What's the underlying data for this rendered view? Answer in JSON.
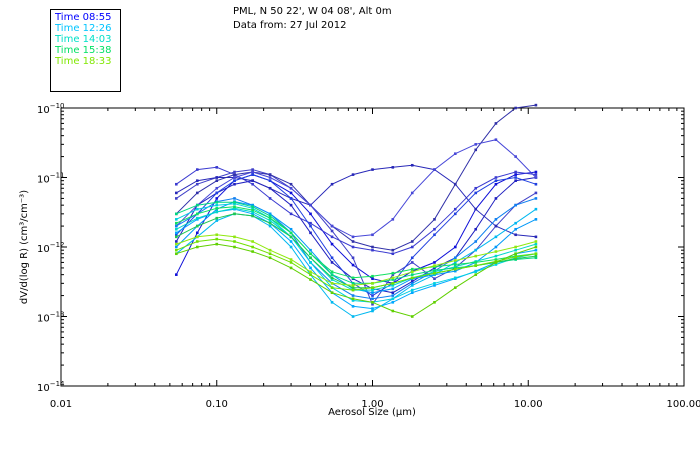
{
  "header": {
    "station": "PML, N 50 22', W 04 08', Alt 0m",
    "date_line": "Data from: 27 Jul 2012"
  },
  "legend": [
    {
      "label": "Time 08:55",
      "color": "#0000ff"
    },
    {
      "label": "Time 12:26",
      "color": "#00c4ff"
    },
    {
      "label": "Time 14:03",
      "color": "#00e0c8"
    },
    {
      "label": "Time 15:38",
      "color": "#00e064"
    },
    {
      "label": "Time 18:33",
      "color": "#80e800"
    }
  ],
  "chart_data": {
    "type": "line",
    "xscale": "log",
    "yscale": "log",
    "xlabel": "Aerosol Size (μm)",
    "ylabel": "dV/d(log R) (cm³/cm⁻³)",
    "xlim": [
      0.01,
      100
    ],
    "ylim": [
      1e-14,
      1e-10
    ],
    "x_ticks": [
      {
        "value": 0.01,
        "label": "0.01"
      },
      {
        "value": 0.1,
        "label": "0.10"
      },
      {
        "value": 1,
        "label": "1.00"
      },
      {
        "value": 10,
        "label": "10.00"
      },
      {
        "value": 100,
        "label": "100.00"
      }
    ],
    "y_ticks": [
      {
        "value": 1e-14,
        "base": "10",
        "exp": "−14"
      },
      {
        "value": 1e-13,
        "base": "10",
        "exp": "−13"
      },
      {
        "value": 1e-12,
        "base": "10",
        "exp": "−12"
      },
      {
        "value": 1e-11,
        "base": "10",
        "exp": "−11"
      },
      {
        "value": 1e-10,
        "base": "10",
        "exp": "−10"
      }
    ],
    "x": [
      0.055,
      0.075,
      0.1,
      0.13,
      0.17,
      0.22,
      0.3,
      0.4,
      0.55,
      0.75,
      1.0,
      1.35,
      1.8,
      2.5,
      3.4,
      4.6,
      6.2,
      8.3,
      11.2
    ],
    "series": [
      {
        "name": "Time 08:55",
        "color": "#1010d8",
        "values": [
          4e-13,
          1.6e-12,
          5e-12,
          9e-12,
          1.1e-11,
          9e-12,
          6e-12,
          3e-12,
          1.1e-12,
          5.5e-13,
          3.5e-13,
          3e-13,
          4.5e-13,
          6e-13,
          1e-12,
          3.5e-12,
          8e-12,
          1.1e-11,
          1.2e-11
        ]
      },
      {
        "name": "Time 08:55",
        "color": "#2020c0",
        "values": [
          1.2e-12,
          4e-12,
          6e-12,
          8e-12,
          9e-12,
          7e-12,
          4e-12,
          1.6e-12,
          6e-13,
          3.5e-13,
          2.5e-13,
          2.2e-13,
          3.2e-13,
          5e-13,
          7e-13,
          1.8e-12,
          5e-12,
          9e-12,
          1e-11
        ]
      },
      {
        "name": "Time 08:55",
        "color": "#3a3ad0",
        "values": [
          8e-12,
          1.3e-11,
          1.4e-11,
          1.1e-11,
          8e-12,
          5e-12,
          3e-12,
          2.2e-12,
          1.4e-12,
          1e-12,
          9e-13,
          8e-13,
          1e-12,
          1.8e-12,
          3.5e-12,
          7e-12,
          1e-11,
          1.2e-11,
          1.1e-11
        ]
      },
      {
        "name": "Time 08:55",
        "color": "#4040c8",
        "values": [
          5e-12,
          8e-12,
          1e-11,
          1.2e-11,
          1.3e-11,
          1.1e-11,
          7e-12,
          4e-12,
          1.7e-12,
          7e-13,
          1.5e-13,
          4e-13,
          6e-13,
          3.5e-13,
          5e-13,
          9e-13,
          2e-12,
          4e-12,
          6e-12
        ]
      },
      {
        "name": "Time 08:55",
        "color": "#2828b8",
        "values": [
          6e-12,
          9e-12,
          1e-11,
          1e-11,
          9e-12,
          7e-12,
          5e-12,
          4e-12,
          8e-12,
          1.1e-11,
          1.3e-11,
          1.4e-11,
          1.5e-11,
          1.3e-11,
          8e-12,
          3.5e-12,
          2e-12,
          1.5e-12,
          1.4e-12
        ]
      },
      {
        "name": "Time 08:55",
        "color": "#3030a8",
        "values": [
          3e-12,
          6e-12,
          9e-12,
          1.1e-11,
          1.2e-11,
          1.1e-11,
          8e-12,
          4e-12,
          2e-12,
          1.2e-12,
          1e-12,
          9e-13,
          1.2e-12,
          2.5e-12,
          8e-12,
          2.5e-11,
          6e-11,
          1e-10,
          1.1e-10
        ]
      },
      {
        "name": "Time 08:55",
        "color": "#4848d8",
        "values": [
          2e-12,
          4e-12,
          7e-12,
          1e-11,
          1.2e-11,
          1e-11,
          7e-12,
          4e-12,
          2e-12,
          1.4e-12,
          1.5e-12,
          2.5e-12,
          6e-12,
          1.3e-11,
          2.2e-11,
          3e-11,
          3.5e-11,
          2e-11,
          1e-11
        ]
      },
      {
        "name": "Time 08:55",
        "color": "#2040e0",
        "values": [
          1.5e-12,
          3e-12,
          6e-12,
          9e-12,
          1.1e-11,
          9e-12,
          5e-12,
          2e-12,
          7e-13,
          3e-13,
          2e-13,
          3e-13,
          7e-13,
          1.5e-12,
          3e-12,
          6e-12,
          9e-12,
          1e-11,
          8e-12
        ]
      },
      {
        "name": "Time 12:26",
        "color": "#1080f0",
        "values": [
          2e-12,
          3e-12,
          4.5e-12,
          5e-12,
          4e-12,
          3e-12,
          1.6e-12,
          6e-13,
          3e-13,
          2e-13,
          1.8e-13,
          2e-13,
          3e-13,
          4.5e-13,
          7e-13,
          1.2e-12,
          2.5e-12,
          4e-12,
          5e-12
        ]
      },
      {
        "name": "Time 12:26",
        "color": "#0098f8",
        "values": [
          1e-12,
          2e-12,
          3.5e-12,
          4.5e-12,
          4e-12,
          3e-12,
          1.8e-12,
          9e-13,
          4e-13,
          2.5e-13,
          2.2e-13,
          2.5e-13,
          3.5e-13,
          4e-13,
          4.5e-13,
          6e-13,
          1e-12,
          1.8e-12,
          2.5e-12
        ]
      },
      {
        "name": "Time 12:26",
        "color": "#00a8ff",
        "values": [
          1.6e-12,
          2.5e-12,
          3.2e-12,
          3.5e-12,
          3e-12,
          2.2e-12,
          1.2e-12,
          5e-13,
          2.2e-13,
          1.4e-13,
          1.3e-13,
          1.6e-13,
          2.2e-13,
          2.8e-13,
          3.5e-13,
          4.5e-13,
          6e-13,
          8e-13,
          9e-13
        ]
      },
      {
        "name": "Time 12:26",
        "color": "#00b8f0",
        "values": [
          8e-13,
          1.4e-12,
          2.4e-12,
          3e-12,
          2.8e-12,
          2e-12,
          1e-12,
          4e-13,
          1.6e-13,
          1e-13,
          1.2e-13,
          1.8e-13,
          2.8e-13,
          4e-13,
          6e-13,
          9e-13,
          1.4e-12,
          2.2e-12,
          3.5e-12
        ]
      },
      {
        "name": "Time 14:03",
        "color": "#00d0e0",
        "values": [
          2.5e-12,
          3.5e-12,
          4e-12,
          4.2e-12,
          3.6e-12,
          2.6e-12,
          1.4e-12,
          6e-13,
          2.6e-13,
          1.7e-13,
          1.6e-13,
          1.8e-13,
          2.4e-13,
          3e-13,
          3.6e-13,
          4.4e-13,
          5.6e-13,
          7e-13,
          8e-13
        ]
      },
      {
        "name": "Time 14:03",
        "color": "#00d8c8",
        "values": [
          1.8e-12,
          2.6e-12,
          3.2e-12,
          3.6e-12,
          3.2e-12,
          2.4e-12,
          1.4e-12,
          7e-13,
          3.4e-13,
          2.4e-13,
          2.4e-13,
          2.8e-13,
          3.6e-13,
          4.4e-13,
          5.2e-13,
          6.2e-13,
          7.4e-13,
          9e-13,
          1.1e-12
        ]
      },
      {
        "name": "Time 15:38",
        "color": "#00d880",
        "values": [
          3e-12,
          4e-12,
          4.4e-12,
          4.4e-12,
          3.8e-12,
          2.8e-12,
          1.6e-12,
          8e-13,
          4e-13,
          3e-13,
          3e-13,
          3.4e-13,
          4e-13,
          4.6e-13,
          5e-13,
          5.4e-13,
          6e-13,
          6.6e-13,
          7e-13
        ]
      },
      {
        "name": "Time 15:38",
        "color": "#10e060",
        "values": [
          2.2e-12,
          3e-12,
          3.6e-12,
          3.8e-12,
          3.4e-12,
          2.6e-12,
          1.6e-12,
          8e-13,
          4.4e-13,
          3.6e-13,
          3.8e-13,
          4.2e-13,
          4.8e-13,
          5.2e-13,
          5.6e-13,
          6e-13,
          6.6e-13,
          7.4e-13,
          8e-13
        ]
      },
      {
        "name": "Time 15:38",
        "color": "#20c850",
        "values": [
          1.4e-12,
          2e-12,
          2.6e-12,
          3e-12,
          2.8e-12,
          2.2e-12,
          1.4e-12,
          7e-13,
          3.6e-13,
          2.6e-13,
          2.6e-13,
          3e-13,
          3.6e-13,
          4.2e-13,
          4.8e-13,
          5.4e-13,
          6e-13,
          6.8e-13,
          7.4e-13
        ]
      },
      {
        "name": "Time 18:33",
        "color": "#70e000",
        "values": [
          9e-13,
          1.2e-12,
          1.3e-12,
          1.2e-12,
          1e-12,
          8e-13,
          6e-13,
          4e-13,
          2.6e-13,
          2.4e-13,
          2.6e-13,
          3e-13,
          3.6e-13,
          4.2e-13,
          4.8e-13,
          5.4e-13,
          6.2e-13,
          7.2e-13,
          8e-13
        ]
      },
      {
        "name": "Time 18:33",
        "color": "#90e810",
        "values": [
          1.1e-12,
          1.4e-12,
          1.5e-12,
          1.4e-12,
          1.2e-12,
          9e-13,
          6.6e-13,
          4.4e-13,
          3e-13,
          2.8e-13,
          3e-13,
          3.6e-13,
          4.4e-13,
          5.4e-13,
          6.4e-13,
          7.4e-13,
          8.6e-13,
          1e-12,
          1.2e-12
        ]
      },
      {
        "name": "Time 18:33",
        "color": "#60d000",
        "values": [
          8e-13,
          1e-12,
          1.1e-12,
          1e-12,
          8.6e-13,
          7e-13,
          5e-13,
          3.4e-13,
          2.2e-13,
          1.8e-13,
          1.6e-13,
          1.2e-13,
          1e-13,
          1.6e-13,
          2.6e-13,
          4e-13,
          6e-13,
          8e-13,
          1e-12
        ]
      }
    ]
  }
}
